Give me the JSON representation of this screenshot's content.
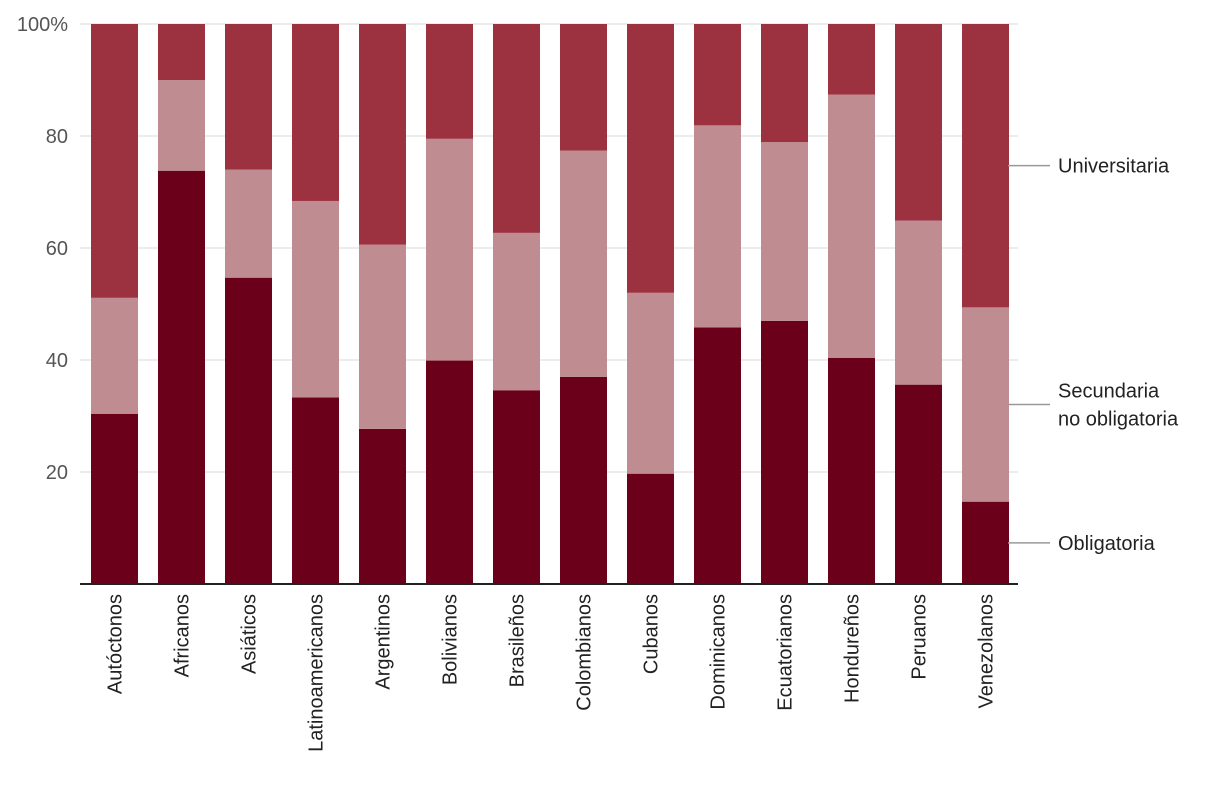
{
  "chart_data": {
    "type": "bar",
    "stacked": true,
    "categories": [
      "Autóctonos",
      "Africanos",
      "Asiáticos",
      "Latinoamericanos",
      "Argentinos",
      "Bolivianos",
      "Brasileños",
      "Colombianos",
      "Cubanos",
      "Dominicanos",
      "Ecuatorianos",
      "Hondureños",
      "Peruanos",
      "Venezolanos"
    ],
    "series": [
      {
        "name": "Obligatoria",
        "color": "#6b001b",
        "values": [
          30.4,
          73.8,
          54.7,
          33.3,
          27.7,
          39.9,
          34.6,
          37.0,
          19.7,
          45.8,
          47.0,
          40.4,
          35.6,
          14.7
        ]
      },
      {
        "name": "Secundaria no obligatoria",
        "color": "#bf8d91",
        "values": [
          20.7,
          16.2,
          19.3,
          35.1,
          32.9,
          39.6,
          28.1,
          40.4,
          32.3,
          36.1,
          31.9,
          47.0,
          29.3,
          34.7
        ]
      },
      {
        "name": "Universitaria",
        "color": "#9c3140",
        "values": [
          48.9,
          10.0,
          26.0,
          31.6,
          39.4,
          20.5,
          37.3,
          22.6,
          48.0,
          18.1,
          21.1,
          12.6,
          35.1,
          50.6
        ]
      }
    ],
    "legend_lines": [
      [
        "Universitaria"
      ],
      [
        "Secundaria",
        "no obligatoria"
      ],
      [
        "Obligatoria"
      ]
    ],
    "y_ticks": [
      20,
      40,
      60,
      80,
      100
    ],
    "y_tick_labels": [
      "20",
      "40",
      "60",
      "80",
      "100%"
    ],
    "ylim": [
      0,
      100
    ],
    "grid": true,
    "legend": "right",
    "title": "",
    "xlabel": "",
    "ylabel": ""
  }
}
